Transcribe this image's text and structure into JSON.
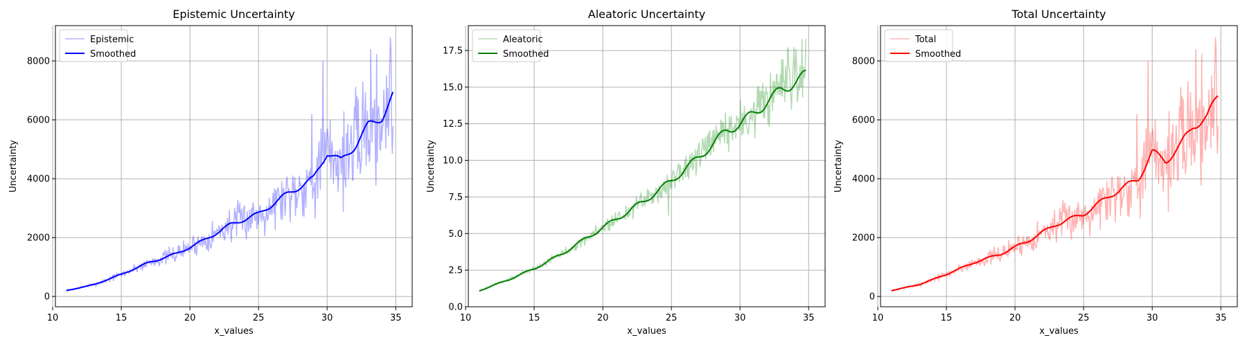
{
  "figure_title": "",
  "chart_data": [
    {
      "type": "line",
      "title": "Epistemic Uncertainty",
      "xlabel": "x_values",
      "ylabel": "Uncertainty",
      "xlim": [
        10.2,
        36.2
      ],
      "ylim": [
        -350,
        9200
      ],
      "xticks": [
        10,
        15,
        20,
        25,
        30,
        35
      ],
      "yticks": [
        0,
        2000,
        4000,
        6000,
        8000
      ],
      "tick_labels_x": [
        "10",
        "15",
        "20",
        "25",
        "30",
        "35"
      ],
      "tick_labels_y": [
        "0",
        "2000",
        "4000",
        "6000",
        "8000"
      ],
      "grid": true,
      "legend_position": "top-left",
      "color": "#0000ff",
      "raw_label": "Epistemic",
      "smooth_label": "Smoothed",
      "x_range": [
        11,
        34.8
      ],
      "anchors_x": [
        11,
        13,
        15,
        17,
        19,
        21,
        23,
        25,
        27,
        29,
        30,
        31,
        32,
        33,
        34,
        34.8
      ],
      "anchors_y": [
        200,
        400,
        750,
        1150,
        1450,
        1900,
        2450,
        2800,
        3450,
        4000,
        4900,
        4600,
        5100,
        5800,
        6100,
        6800
      ],
      "noise_amp": 0.17,
      "noise_seed": 7,
      "spikes": [
        [
          29.7,
          8000
        ],
        [
          33.2,
          8400
        ],
        [
          34.6,
          8800
        ],
        [
          32.6,
          7300
        ],
        [
          28.9,
          6200
        ]
      ]
    },
    {
      "type": "line",
      "title": "Aleatoric Uncertainty",
      "xlabel": "x_values",
      "ylabel": "Uncertainty",
      "xlim": [
        10.2,
        36.2
      ],
      "ylim": [
        0,
        19.2
      ],
      "xticks": [
        10,
        15,
        20,
        25,
        30,
        35
      ],
      "yticks": [
        0,
        2.5,
        5,
        7.5,
        10,
        12.5,
        15,
        17.5
      ],
      "tick_labels_x": [
        "10",
        "15",
        "20",
        "25",
        "30",
        "35"
      ],
      "tick_labels_y": [
        "0.0",
        "2.5",
        "5.0",
        "7.5",
        "10.0",
        "12.5",
        "15.0",
        "17.5"
      ],
      "grid": true,
      "legend_position": "top-left",
      "color": "#008000",
      "raw_label": "Aleatoric",
      "smooth_label": "Smoothed",
      "x_range": [
        11,
        34.8
      ],
      "anchors_x": [
        11,
        13,
        15,
        17,
        19,
        21,
        23,
        25,
        27,
        29,
        30,
        31,
        33,
        34.8
      ],
      "anchors_y": [
        1.1,
        1.8,
        2.6,
        3.6,
        4.8,
        6.0,
        7.2,
        8.6,
        10.2,
        12.0,
        12.5,
        13.2,
        14.8,
        15.8
      ],
      "noise_amp": 0.07,
      "noise_seed": 19,
      "spikes": [
        [
          34.8,
          18.3
        ],
        [
          33.5,
          17.6
        ],
        [
          24.8,
          6.2
        ]
      ]
    },
    {
      "type": "line",
      "title": "Total Uncertainty",
      "xlabel": "x_values",
      "ylabel": "Uncertainty",
      "xlim": [
        10.2,
        36.2
      ],
      "ylim": [
        -350,
        9200
      ],
      "xticks": [
        10,
        15,
        20,
        25,
        30,
        35
      ],
      "yticks": [
        0,
        2000,
        4000,
        6000,
        8000
      ],
      "tick_labels_x": [
        "10",
        "15",
        "20",
        "25",
        "30",
        "35"
      ],
      "tick_labels_y": [
        "0",
        "2000",
        "4000",
        "6000",
        "8000"
      ],
      "grid": true,
      "legend_position": "top-left",
      "color": "#ff0000",
      "raw_label": "Total",
      "smooth_label": "Smoothed",
      "x_range": [
        11,
        34.8
      ],
      "anchors_x": [
        11,
        13,
        15,
        17,
        19,
        21,
        23,
        25,
        27,
        29,
        30,
        31,
        32,
        33,
        34,
        34.8
      ],
      "anchors_y": [
        200,
        400,
        750,
        1150,
        1450,
        1900,
        2450,
        2800,
        3450,
        4000,
        4900,
        4600,
        5100,
        5800,
        6100,
        6800
      ],
      "noise_amp": 0.17,
      "noise_seed": 7,
      "spikes": [
        [
          29.7,
          8000
        ],
        [
          33.2,
          8400
        ],
        [
          34.6,
          8800
        ],
        [
          32.6,
          7300
        ],
        [
          28.9,
          6200
        ]
      ]
    }
  ]
}
